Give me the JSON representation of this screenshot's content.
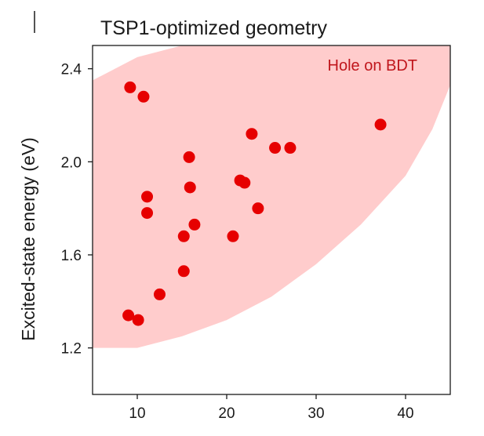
{
  "chart_data": {
    "type": "scatter",
    "title": "TSP1-optimized geometry",
    "xlabel": "",
    "ylabel": "Excited-state energy (eV)",
    "xlim": [
      5,
      45
    ],
    "ylim": [
      1.0,
      2.5
    ],
    "xticks": [
      10,
      20,
      30,
      40
    ],
    "yticks": [
      1.2,
      1.6,
      2.0,
      2.4
    ],
    "xtick_labels": [
      "10",
      "20",
      "30",
      "40"
    ],
    "ytick_labels": [
      "1.2",
      "1.6",
      "2.0",
      "2.4"
    ],
    "grid": false,
    "annotation": "Hole on BDT",
    "colors": {
      "points": "#e60000",
      "region": "#ffcccc",
      "annotation": "#c0161c",
      "axis": "#1a1a1a"
    },
    "region": {
      "description_shape": "shaded band",
      "upper": [
        [
          5,
          2.35
        ],
        [
          10,
          2.45
        ],
        [
          15,
          2.5
        ],
        [
          45,
          2.5
        ]
      ],
      "lower": [
        [
          5,
          1.2
        ],
        [
          10,
          1.2
        ],
        [
          15,
          1.25
        ],
        [
          20,
          1.32
        ],
        [
          25,
          1.42
        ],
        [
          30,
          1.56
        ],
        [
          35,
          1.73
        ],
        [
          40,
          1.94
        ],
        [
          43,
          2.14
        ],
        [
          45,
          2.33
        ]
      ]
    },
    "series": [
      {
        "points": [
          [
            9.2,
            2.32
          ],
          [
            10.7,
            2.28
          ],
          [
            15.8,
            2.02
          ],
          [
            15.9,
            1.89
          ],
          [
            11.1,
            1.85
          ],
          [
            11.1,
            1.78
          ],
          [
            16.4,
            1.73
          ],
          [
            15.2,
            1.68
          ],
          [
            15.2,
            1.53
          ],
          [
            12.5,
            1.43
          ],
          [
            9.0,
            1.34
          ],
          [
            10.1,
            1.32
          ],
          [
            20.7,
            1.68
          ],
          [
            21.5,
            1.92
          ],
          [
            22.0,
            1.91
          ],
          [
            22.8,
            2.12
          ],
          [
            23.5,
            1.8
          ],
          [
            25.4,
            2.06
          ],
          [
            27.1,
            2.06
          ],
          [
            37.2,
            2.16
          ]
        ]
      }
    ]
  }
}
